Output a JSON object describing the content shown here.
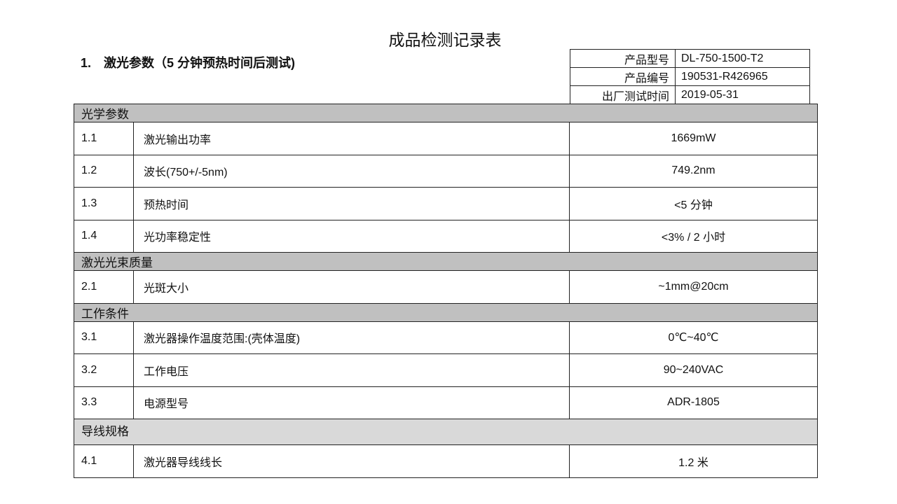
{
  "title": "成品检测记录表",
  "section": {
    "number": "1.",
    "label": "激光参数（5 分钟预热时间后测试)"
  },
  "info": [
    {
      "key": "产品型号",
      "value": "DL-750-1500-T2"
    },
    {
      "key": "产品编号",
      "value": "190531-R426965"
    },
    {
      "key": "出厂测试时间",
      "value": "2019-05-31"
    }
  ],
  "groups": [
    {
      "name": "光学参数",
      "rows": [
        {
          "no": "1.1",
          "item": "激光输出功率",
          "value": "1669mW"
        },
        {
          "no": "1.2",
          "item": "波长(750+/-5nm)",
          "value": "749.2nm"
        },
        {
          "no": "1.3",
          "item": "预热时间",
          "value": "<5 分钟"
        },
        {
          "no": "1.4",
          "item": "光功率稳定性",
          "value": "<3% / 2 小时"
        }
      ]
    },
    {
      "name": "激光光束质量",
      "rows": [
        {
          "no": "2.1",
          "item": "光斑大小",
          "value": "~1mm@20cm"
        }
      ]
    },
    {
      "name": "工作条件",
      "rows": [
        {
          "no": "3.1",
          "item": "激光器操作温度范围:(壳体温度)",
          "value": "0℃~40℃"
        },
        {
          "no": "3.2",
          "item": "工作电压",
          "value": "90~240VAC"
        },
        {
          "no": "3.3",
          "item": "电源型号",
          "value": "ADR-1805"
        }
      ]
    },
    {
      "name": "导线规格",
      "rows": [
        {
          "no": "4.1",
          "item": "激光器导线线长",
          "value": "1.2 米"
        }
      ]
    }
  ]
}
